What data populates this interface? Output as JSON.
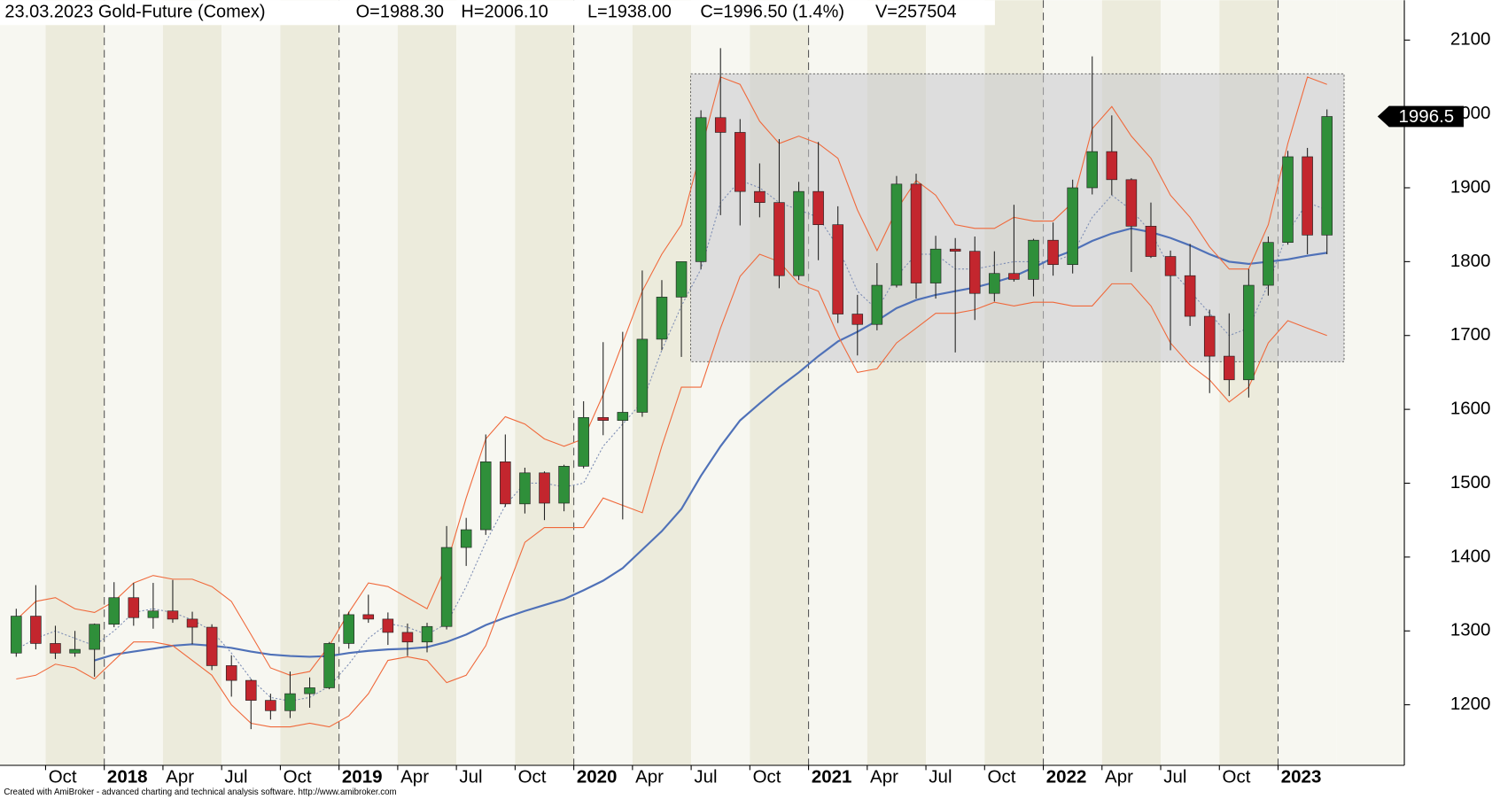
{
  "header": {
    "title": "23.03.2023 Gold-Future (Comex)",
    "open": "O=1988.30",
    "high": "H=2006.10",
    "low": "L=1938.00",
    "close": "C=1996.50 (1.4%)",
    "volume": "V=257504"
  },
  "footer": "Created with AmiBroker - advanced charting and technical analysis software. http://www.amibroker.com",
  "chart_data": {
    "type": "candlestick",
    "categories": [
      null,
      null,
      "Oct",
      null,
      null,
      "2018",
      null,
      null,
      "Apr",
      null,
      null,
      "Jul",
      null,
      null,
      "Oct",
      null,
      null,
      "2019",
      null,
      null,
      "Apr",
      null,
      null,
      "Jul",
      null,
      null,
      "Oct",
      null,
      null,
      "2020",
      null,
      null,
      "Apr",
      null,
      null,
      "Jul",
      null,
      null,
      "Oct",
      null,
      null,
      "2021",
      null,
      null,
      "Apr",
      null,
      null,
      "Jul",
      null,
      null,
      "Oct",
      null,
      null,
      "2022",
      null,
      null,
      "Apr",
      null,
      null,
      "Jul",
      null,
      null,
      "Oct",
      null,
      null,
      "2023",
      null,
      null
    ],
    "open": [
      1270,
      1320,
      1283,
      1270,
      1275,
      1309,
      1345,
      1318,
      1327,
      1316,
      1305,
      1253,
      1233,
      1206,
      1192,
      1215,
      1223,
      1283,
      1322,
      1316,
      1298,
      1285,
      1306,
      1413,
      1437,
      1529,
      1472,
      1514,
      1473,
      1523,
      1589,
      1585,
      1596,
      1695,
      1752,
      1800,
      1995,
      1975,
      1895,
      1880,
      1781,
      1895,
      1850,
      1729,
      1715,
      1768,
      1905,
      1771,
      1817,
      1814,
      1757,
      1784,
      1776,
      1829,
      1796,
      1900,
      1949,
      1911,
      1848,
      1807,
      1781,
      1726,
      1672,
      1640,
      1768,
      1826,
      1942,
      1836
    ],
    "high": [
      1330,
      1362,
      1307,
      1300,
      1310,
      1366,
      1365,
      1365,
      1369,
      1326,
      1309,
      1267,
      1235,
      1215,
      1245,
      1237,
      1285,
      1326,
      1349,
      1325,
      1310,
      1311,
      1442,
      1453,
      1566,
      1566,
      1521,
      1516,
      1525,
      1611,
      1691,
      1705,
      1788,
      1775,
      1800,
      2005,
      2089,
      1993,
      1933,
      1966,
      1908,
      1962,
      1875,
      1755,
      1798,
      1916,
      1919,
      1835,
      1832,
      1834,
      1814,
      1877,
      1831,
      1853,
      1911,
      2078,
      1998,
      1913,
      1880,
      1815,
      1824,
      1735,
      1730,
      1790,
      1834,
      1950,
      1954,
      2006.1
    ],
    "low": [
      1265,
      1275,
      1262,
      1265,
      1238,
      1305,
      1307,
      1303,
      1311,
      1282,
      1247,
      1211,
      1167,
      1180,
      1182,
      1196,
      1221,
      1276,
      1311,
      1281,
      1266,
      1271,
      1302,
      1388,
      1430,
      1468,
      1459,
      1450,
      1462,
      1520,
      1565,
      1451,
      1590,
      1680,
      1671,
      1790,
      1863,
      1849,
      1860,
      1764,
      1775,
      1802,
      1717,
      1673,
      1707,
      1765,
      1750,
      1750,
      1677,
      1721,
      1746,
      1773,
      1753,
      1781,
      1784,
      1891,
      1890,
      1786,
      1805,
      1680,
      1713,
      1622,
      1618,
      1616,
      1754,
      1823,
      1810,
      1810
    ],
    "close": [
      1320,
      1283,
      1270,
      1275,
      1309,
      1345,
      1318,
      1327,
      1316,
      1305,
      1253,
      1233,
      1206,
      1192,
      1215,
      1223,
      1283,
      1322,
      1316,
      1298,
      1285,
      1306,
      1413,
      1437,
      1529,
      1472,
      1514,
      1473,
      1523,
      1589,
      1585,
      1596,
      1695,
      1752,
      1800,
      1995,
      1975,
      1895,
      1880,
      1781,
      1895,
      1850,
      1729,
      1715,
      1768,
      1905,
      1771,
      1817,
      1814,
      1757,
      1784,
      1776,
      1829,
      1796,
      1900,
      1949,
      1911,
      1848,
      1807,
      1781,
      1726,
      1672,
      1640,
      1768,
      1826,
      1942,
      1836,
      1996.5
    ],
    "up_color": "#2f8f3a",
    "down_color": "#c3262e",
    "overlays": [
      {
        "color": "#4f71b8",
        "style": "solid",
        "values": [
          null,
          null,
          null,
          null,
          1260,
          1268,
          1272,
          1276,
          1280,
          1282,
          1280,
          1277,
          1272,
          1268,
          1266,
          1265,
          1266,
          1270,
          1273,
          1275,
          1276,
          1278,
          1285,
          1295,
          1308,
          1318,
          1327,
          1335,
          1343,
          1355,
          1368,
          1385,
          1410,
          1435,
          1465,
          1510,
          1550,
          1585,
          1608,
          1630,
          1650,
          1672,
          1692,
          1705,
          1720,
          1737,
          1748,
          1755,
          1760,
          1765,
          1772,
          1780,
          1792,
          1805,
          1815,
          1828,
          1838,
          1845,
          1840,
          1832,
          1822,
          1810,
          1800,
          1797,
          1800,
          1803,
          1808,
          1812
        ]
      },
      {
        "color": "#f0683a",
        "style": "thin",
        "values": [
          1315,
          1340,
          1345,
          1330,
          1325,
          1340,
          1365,
          1375,
          1370,
          1370,
          1360,
          1340,
          1295,
          1250,
          1240,
          1245,
          1280,
          1325,
          1365,
          1360,
          1345,
          1330,
          1390,
          1480,
          1560,
          1590,
          1580,
          1560,
          1550,
          1560,
          1620,
          1690,
          1760,
          1810,
          1850,
          1950,
          2050,
          2040,
          1990,
          1960,
          1970,
          1960,
          1940,
          1870,
          1815,
          1870,
          1910,
          1890,
          1850,
          1845,
          1845,
          1860,
          1855,
          1855,
          1880,
          1980,
          2010,
          1970,
          1940,
          1890,
          1860,
          1820,
          1790,
          1790,
          1850,
          1960,
          2050,
          2040
        ]
      },
      {
        "color": "#f0683a",
        "style": "thin",
        "values": [
          1235,
          1240,
          1255,
          1250,
          1235,
          1260,
          1285,
          1285,
          1280,
          1260,
          1240,
          1200,
          1175,
          1170,
          1170,
          1175,
          1170,
          1185,
          1215,
          1260,
          1265,
          1260,
          1230,
          1240,
          1280,
          1350,
          1420,
          1440,
          1440,
          1440,
          1480,
          1470,
          1460,
          1550,
          1630,
          1630,
          1710,
          1780,
          1810,
          1800,
          1770,
          1760,
          1700,
          1650,
          1655,
          1690,
          1710,
          1730,
          1730,
          1735,
          1745,
          1740,
          1745,
          1745,
          1740,
          1740,
          1770,
          1770,
          1740,
          1690,
          1660,
          1640,
          1610,
          1630,
          1690,
          1720,
          1710,
          1700
        ]
      },
      {
        "color": "#7f8fb5",
        "style": "dotted",
        "values": [
          1275,
          1290,
          1300,
          1290,
          1280,
          1300,
          1325,
          1330,
          1325,
          1315,
          1300,
          1270,
          1235,
          1210,
          1205,
          1210,
          1225,
          1255,
          1290,
          1310,
          1305,
          1295,
          1310,
          1360,
          1420,
          1470,
          1500,
          1500,
          1495,
          1500,
          1550,
          1580,
          1610,
          1680,
          1740,
          1790,
          1880,
          1910,
          1900,
          1880,
          1870,
          1860,
          1820,
          1760,
          1735,
          1780,
          1810,
          1810,
          1790,
          1790,
          1795,
          1800,
          1800,
          1800,
          1810,
          1860,
          1890,
          1870,
          1840,
          1790,
          1760,
          1730,
          1700,
          1710,
          1770,
          1840,
          1880,
          1870
        ]
      }
    ],
    "ylim": [
      1118,
      2154
    ],
    "yticks": [
      1200,
      1300,
      1400,
      1500,
      1600,
      1700,
      1800,
      1900,
      2000,
      2100
    ]
  }
}
